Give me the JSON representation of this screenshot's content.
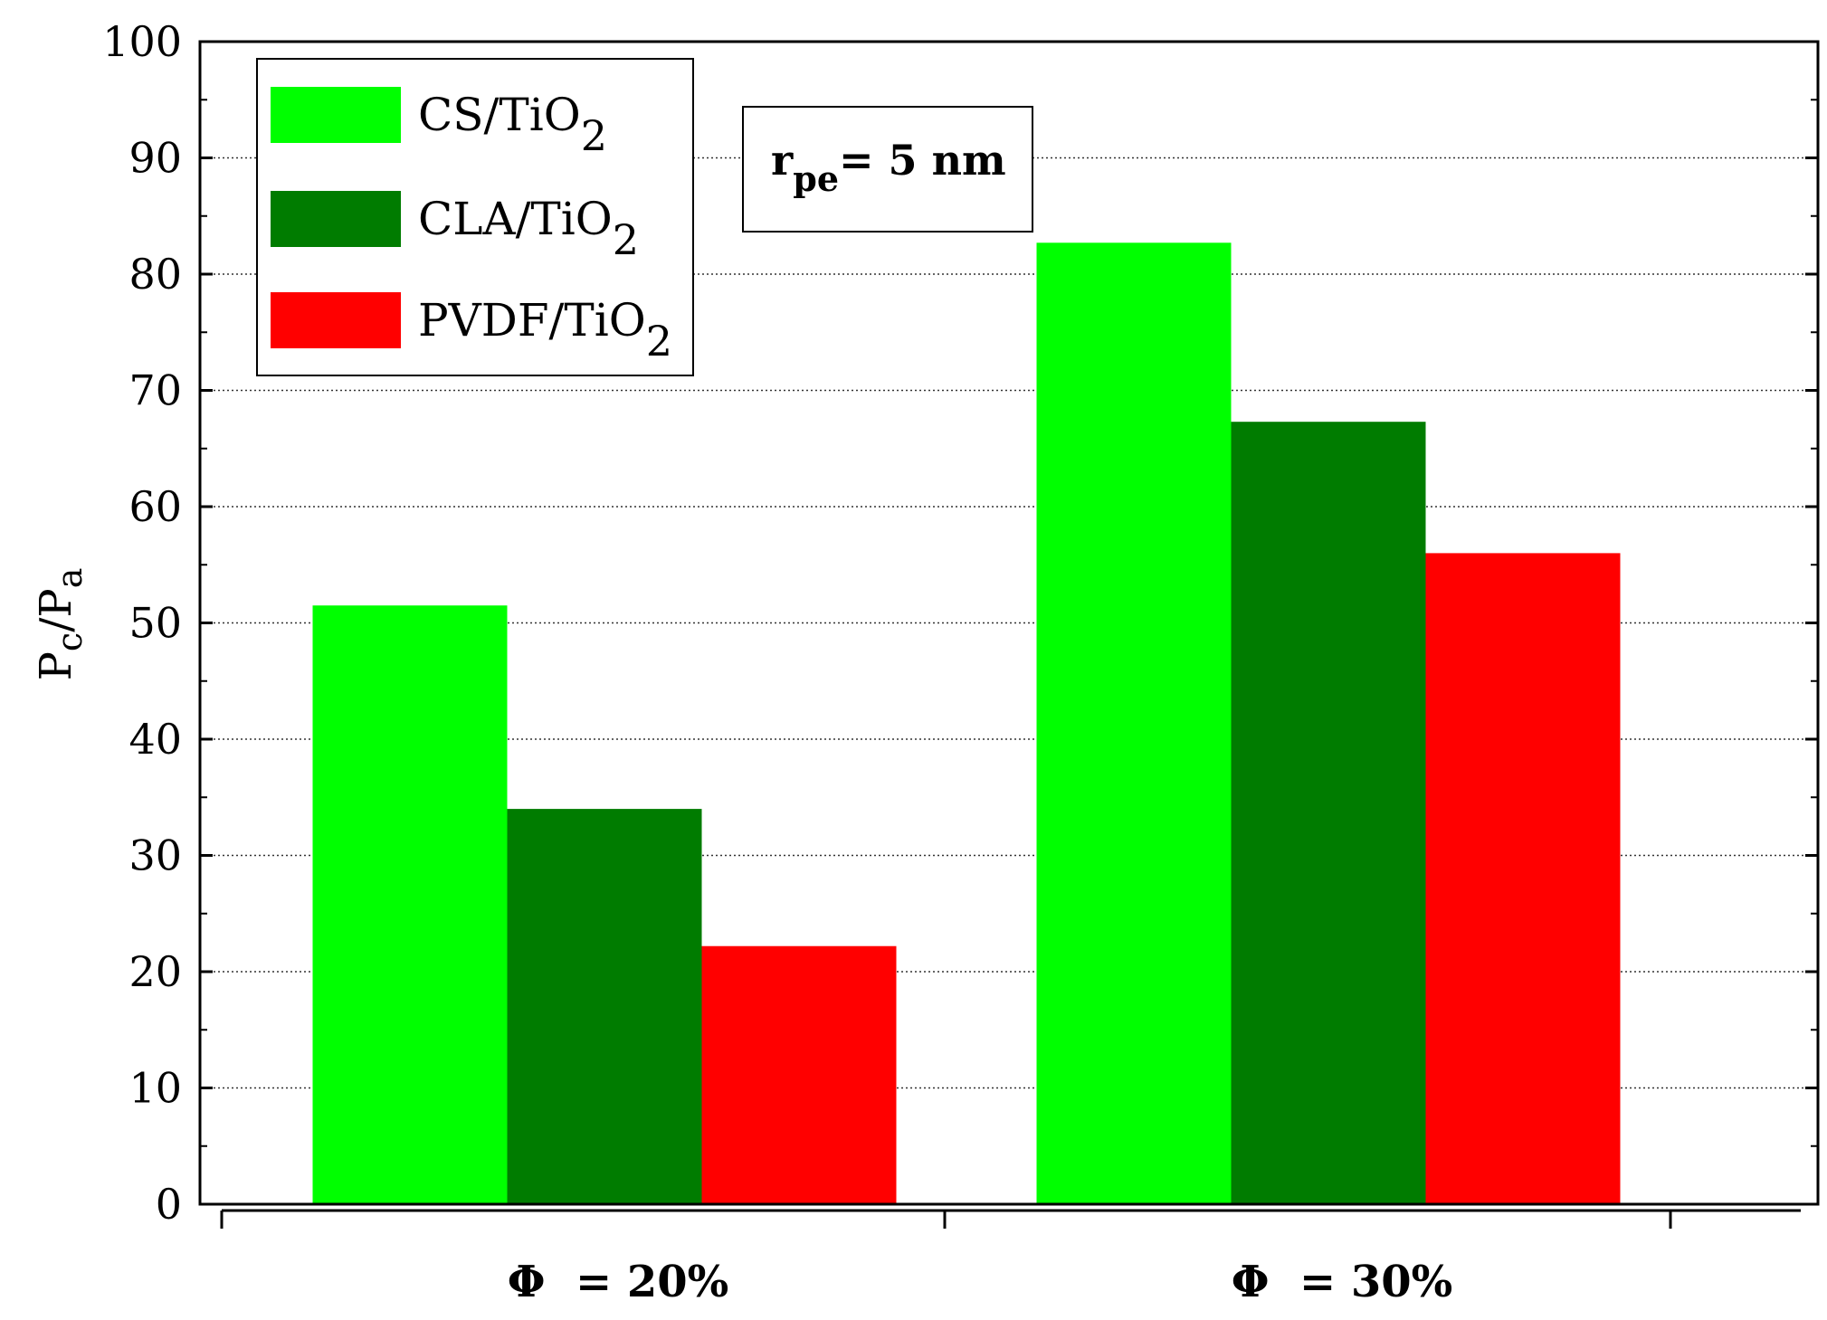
{
  "chart_data": {
    "type": "bar",
    "categories": [
      "Φ  = 20%",
      "Φ  = 30%"
    ],
    "series": [
      {
        "name": "CS/TiO2",
        "name_base": "CS/TiO",
        "name_sub": "2",
        "color": "#00ff00",
        "values": [
          51.5,
          82.7
        ]
      },
      {
        "name": "CLA/TiO2",
        "name_base": "CLA/TiO",
        "name_sub": "2",
        "color": "#007c00",
        "values": [
          34.0,
          67.3
        ]
      },
      {
        "name": "PVDF/TiO2",
        "name_base": "PVDF/TiO",
        "name_sub": "2",
        "color": "#ff0000",
        "values": [
          22.2,
          56.0
        ]
      }
    ],
    "ylabel_main": "P",
    "ylabel_sub1": "c",
    "ylabel_mid": "/P",
    "ylabel_sub2": "a",
    "ylim": [
      0,
      100
    ],
    "yticks": [
      "0",
      "10",
      "20",
      "30",
      "40",
      "50",
      "60",
      "70",
      "80",
      "90",
      "100"
    ],
    "grid": "horizontal dotted",
    "legend_position": "top-left",
    "annotation": {
      "main": "r",
      "sub": "pe",
      "rest": "= 5 nm"
    }
  }
}
